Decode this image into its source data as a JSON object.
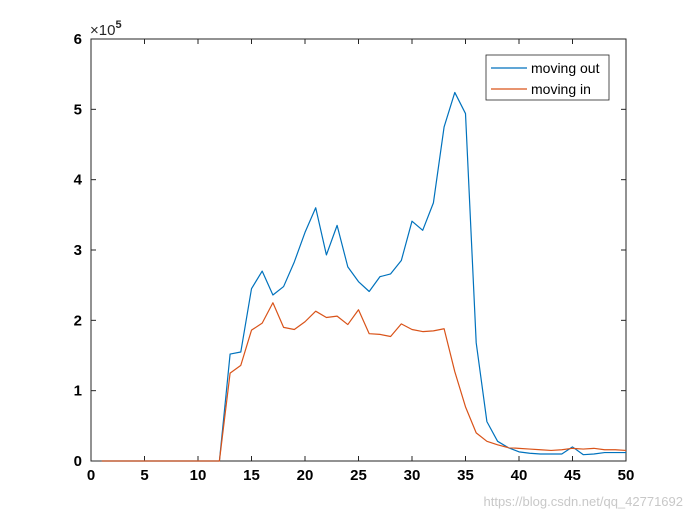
{
  "chart_data": {
    "type": "line",
    "title": "",
    "xlabel": "",
    "ylabel": "",
    "xlim": [
      0,
      50
    ],
    "ylim": [
      0,
      600000
    ],
    "xticks": [
      0,
      5,
      10,
      15,
      20,
      25,
      30,
      35,
      40,
      45,
      50
    ],
    "yticks": [
      0,
      100000,
      200000,
      300000,
      400000,
      500000,
      600000
    ],
    "ytick_labels": [
      "0",
      "1",
      "2",
      "3",
      "4",
      "5",
      "6"
    ],
    "y_exponent": {
      "base": "×10",
      "power": "5"
    },
    "grid": false,
    "legend_position": "top-right",
    "x": [
      1,
      2,
      3,
      4,
      5,
      6,
      7,
      8,
      9,
      10,
      11,
      12,
      13,
      14,
      15,
      16,
      17,
      18,
      19,
      20,
      21,
      22,
      23,
      24,
      25,
      26,
      27,
      28,
      29,
      30,
      31,
      32,
      33,
      34,
      35,
      36,
      37,
      38,
      39,
      40,
      41,
      42,
      43,
      44,
      45,
      46,
      47,
      48,
      49,
      50
    ],
    "series": [
      {
        "name": "moving out",
        "color": "#0072BD",
        "values": [
          0,
          0,
          0,
          0,
          0,
          0,
          0,
          0,
          0,
          0,
          0,
          0,
          152000,
          155000,
          245000,
          270000,
          236000,
          248000,
          283000,
          325000,
          360000,
          293000,
          335000,
          276000,
          255000,
          241000,
          262000,
          266000,
          285000,
          341000,
          328000,
          367000,
          475000,
          524000,
          494000,
          168000,
          56000,
          28000,
          19000,
          13000,
          11000,
          10000,
          10000,
          10000,
          20000,
          9000,
          10000,
          12000,
          12000,
          12000
        ]
      },
      {
        "name": "moving in",
        "color": "#D95319",
        "values": [
          0,
          0,
          0,
          0,
          0,
          0,
          0,
          0,
          0,
          0,
          0,
          0,
          125000,
          136000,
          186000,
          196000,
          225000,
          190000,
          187000,
          198000,
          213000,
          204000,
          206000,
          194000,
          215000,
          181000,
          180000,
          177000,
          195000,
          187000,
          184000,
          185000,
          188000,
          127000,
          77000,
          40000,
          28000,
          23000,
          19000,
          18000,
          17000,
          16000,
          15000,
          16000,
          18000,
          17000,
          18000,
          16000,
          16000,
          15000
        ]
      }
    ]
  },
  "watermark": "https://blog.csdn.net/qq_42771692"
}
